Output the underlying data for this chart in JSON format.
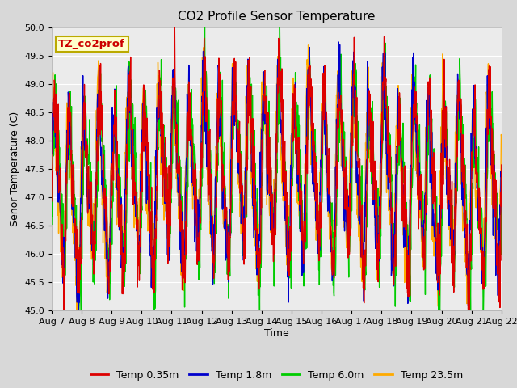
{
  "title": "CO2 Profile Sensor Temperature",
  "xlabel": "Time",
  "ylabel": "Senor Temperature (C)",
  "ylim": [
    45.0,
    50.0
  ],
  "yticks": [
    45.0,
    45.5,
    46.0,
    46.5,
    47.0,
    47.5,
    48.0,
    48.5,
    49.0,
    49.5,
    50.0
  ],
  "days": [
    "Aug 7",
    "Aug 8",
    "Aug 9",
    "Aug 10",
    "Aug 11",
    "Aug 12",
    "Aug 13",
    "Aug 14",
    "Aug 15",
    "Aug 16",
    "Aug 17",
    "Aug 18",
    "Aug 19",
    "Aug 20",
    "Aug 21",
    "Aug 22"
  ],
  "n_days": 16,
  "n_points": 1500,
  "colors": {
    "Temp 0.35m": "#dd0000",
    "Temp 1.8m": "#0000cc",
    "Temp 6.0m": "#00cc00",
    "Temp 23.5m": "#ffaa00"
  },
  "annotation_text": "TZ_co2prof",
  "annotation_color": "#cc0000",
  "annotation_bg": "#ffffcc",
  "annotation_border": "#bbaa00",
  "fig_bg": "#d8d8d8",
  "plot_bg": "#ebebeb",
  "grid_color": "#ffffff",
  "title_fontsize": 11,
  "label_fontsize": 9,
  "tick_fontsize": 8,
  "legend_fontsize": 9,
  "line_width": 1.0
}
